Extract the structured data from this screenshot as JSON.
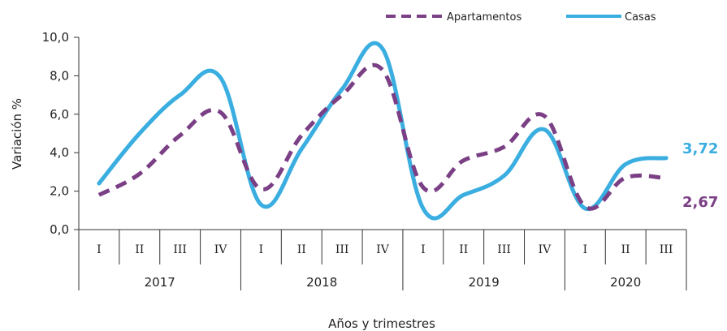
{
  "chart_data": {
    "type": "line",
    "title": "",
    "xlabel": "Años y trimestres",
    "ylabel": "Variación %",
    "ylim": [
      0,
      10
    ],
    "yticks": [
      "0,0",
      "2,0",
      "4,0",
      "6,0",
      "8,0",
      "10,0"
    ],
    "grid": false,
    "legend_position": "top-right",
    "years": [
      "2017",
      "2018",
      "2019",
      "2020"
    ],
    "quarters": [
      "I",
      "II",
      "III",
      "IV",
      "I",
      "II",
      "III",
      "IV",
      "I",
      "II",
      "III",
      "IV",
      "I",
      "II",
      "III"
    ],
    "series": [
      {
        "name": "Apartamentos",
        "color": "#7B3F85",
        "style": "dashed",
        "values": [
          1.8,
          2.9,
          4.9,
          6.1,
          2.1,
          4.9,
          7.0,
          8.3,
          2.2,
          3.6,
          4.3,
          5.9,
          1.2,
          2.7,
          2.67
        ],
        "end_label": "2,67"
      },
      {
        "name": "Casas",
        "color": "#3AAEE0",
        "style": "solid",
        "values": [
          2.4,
          5.0,
          7.0,
          7.9,
          1.3,
          4.2,
          7.3,
          9.4,
          1.1,
          1.8,
          2.8,
          5.2,
          1.1,
          3.4,
          3.72
        ],
        "end_label": "3,72"
      }
    ]
  }
}
